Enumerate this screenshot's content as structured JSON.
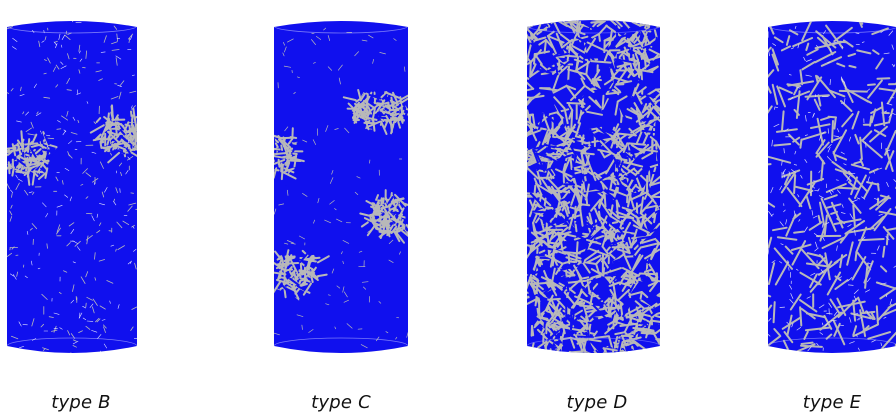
{
  "panels": [
    {
      "label": "type B",
      "pattern": "mesh-with-two-grey-bands",
      "colors": {
        "body": "#1010ee",
        "mesh": "#b8b8b8"
      }
    },
    {
      "label": "type C",
      "pattern": "mesh-with-four-grey-patches",
      "colors": {
        "body": "#1010ee",
        "mesh": "#b8b8b8"
      }
    },
    {
      "label": "type D",
      "pattern": "dense-grey-triangular-network",
      "colors": {
        "body": "#1010ee",
        "mesh": "#b8b8b8"
      }
    },
    {
      "label": "type E",
      "pattern": "sparse-grey-fibres",
      "colors": {
        "body": "#1010ee",
        "mesh": "#b8b8b8"
      }
    }
  ]
}
